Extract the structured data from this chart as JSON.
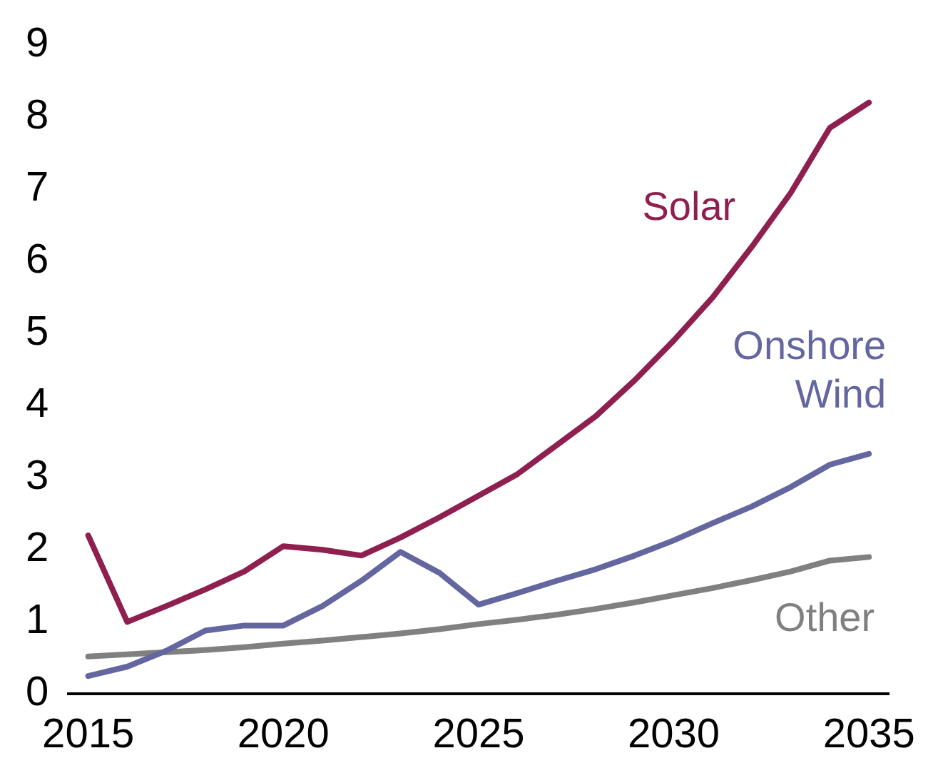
{
  "chart_data": {
    "type": "line",
    "x": [
      2015,
      2016,
      2017,
      2018,
      2019,
      2020,
      2021,
      2022,
      2023,
      2024,
      2025,
      2026,
      2027,
      2028,
      2029,
      2030,
      2031,
      2032,
      2033,
      2034,
      2035
    ],
    "series": [
      {
        "name": "Solar",
        "color": "#8e1f4f",
        "values": [
          2.2,
          1.0,
          1.22,
          1.45,
          1.7,
          2.05,
          2.0,
          1.92,
          2.17,
          2.45,
          2.75,
          3.05,
          3.45,
          3.85,
          4.35,
          4.9,
          5.5,
          6.2,
          6.95,
          7.85,
          8.2
        ]
      },
      {
        "name": "Onshore Wind",
        "color": "#6466a0",
        "values": [
          0.25,
          0.38,
          0.6,
          0.88,
          0.95,
          0.95,
          1.22,
          1.57,
          1.97,
          1.68,
          1.24,
          1.4,
          1.57,
          1.73,
          1.92,
          2.13,
          2.37,
          2.6,
          2.87,
          3.18,
          3.33
        ]
      },
      {
        "name": "Other",
        "color": "#808080",
        "values": [
          0.52,
          0.55,
          0.58,
          0.61,
          0.65,
          0.7,
          0.74,
          0.79,
          0.84,
          0.9,
          0.97,
          1.03,
          1.1,
          1.18,
          1.27,
          1.37,
          1.47,
          1.58,
          1.7,
          1.85,
          1.9
        ]
      }
    ],
    "xlim": [
      2014.5,
      2035.5
    ],
    "xticks": [
      2015,
      2020,
      2025,
      2030,
      2035
    ],
    "ylim": [
      0,
      9
    ],
    "yticks": [
      0,
      1,
      2,
      3,
      4,
      5,
      6,
      7,
      8,
      9
    ],
    "grid": false,
    "legend": false,
    "marker": "none",
    "line_style": "solid"
  }
}
